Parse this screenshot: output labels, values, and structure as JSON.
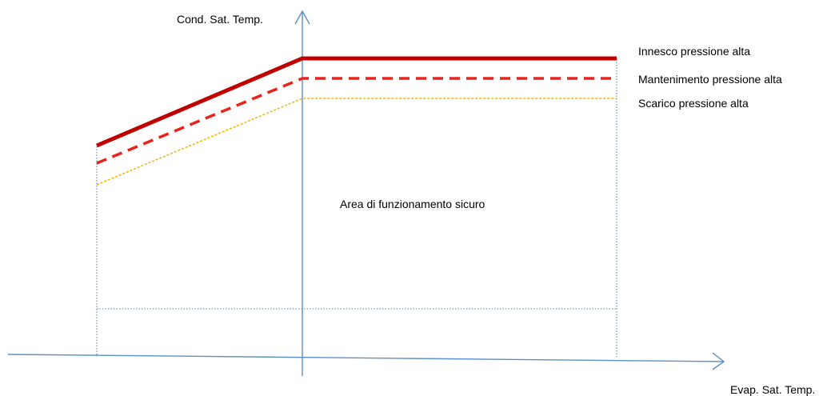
{
  "diagram": {
    "y_axis_label": "Cond. Sat. Temp.",
    "x_axis_label": "Evap. Sat. Temp.",
    "area_label": "Area di funzionamento sicuro",
    "lines": [
      {
        "label": "Innesco pressione alta",
        "color": "#c00000",
        "style": "solid"
      },
      {
        "label": "Mantenimento pressione alta",
        "color": "#e8231c",
        "style": "dashed"
      },
      {
        "label": "Scarico pressione alta",
        "color": "#f2b600",
        "style": "dotted"
      }
    ],
    "axis_color": "#5b8fc9",
    "boundary_color": "#4a7eb8"
  }
}
